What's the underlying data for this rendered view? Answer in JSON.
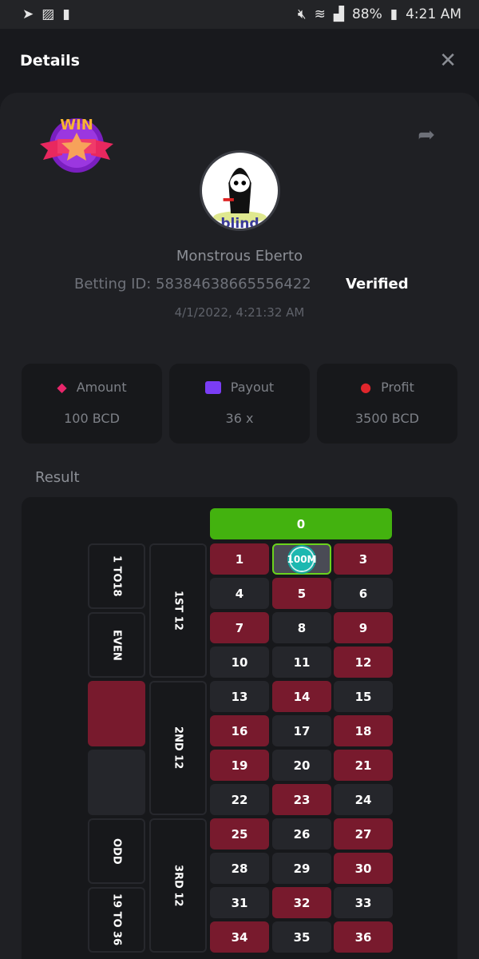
{
  "status_bar": {
    "battery": "88%",
    "time": "4:21 AM",
    "icons": [
      "telegram-icon",
      "gallery-icon",
      "battery-saver-icon",
      "mute-icon",
      "wifi-icon",
      "no-sim-icon",
      "signal-icon",
      "battery-icon"
    ]
  },
  "header": {
    "title": "Details",
    "close": "✕"
  },
  "bet": {
    "badge_text": "WIN",
    "player": "Monstrous Eberto",
    "betting_id": "Betting ID: 58384638665556422",
    "verified": "Verified",
    "date": "4/1/2022, 4:21:32 AM"
  },
  "stats": [
    {
      "label": "Amount",
      "value": "100 BCD",
      "icon": "coins-icon",
      "color": "#e8266b"
    },
    {
      "label": "Payout",
      "value": "36 x",
      "icon": "card-icon",
      "color": "#7a3df5"
    },
    {
      "label": "Profit",
      "value": "3500 BCD",
      "icon": "hand-coin-icon",
      "color": "#e0262c"
    }
  ],
  "result": {
    "label": "Result",
    "zero": "0",
    "red_numbers": [
      1,
      3,
      5,
      7,
      9,
      12,
      14,
      16,
      18,
      19,
      21,
      23,
      25,
      27,
      30,
      32,
      34,
      36
    ],
    "selected_number": 2,
    "chip_label": "100M",
    "outside": {
      "low": "1 TO18",
      "even": "EVEN",
      "odd": "ODD",
      "high": "19 TO 36"
    },
    "dozens": [
      "1ST 12",
      "2ND 12",
      "3RD 12"
    ],
    "colors": {
      "red": "#781a2d",
      "black": "#25262b",
      "green": "#43b20f",
      "selected_border": "#6bd21c"
    }
  }
}
